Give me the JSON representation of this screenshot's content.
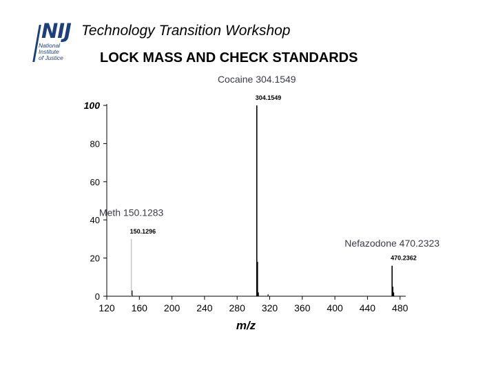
{
  "header": {
    "logo": {
      "text": "NIJ",
      "lines": [
        "National",
        "Institute",
        "of Justice"
      ],
      "color": "#1d3f7a"
    },
    "title": "Technology Transition Workshop",
    "subtitle": "LOCK MASS AND CHECK STANDARDS"
  },
  "chart_data": {
    "type": "bar",
    "title": "",
    "xlabel": "m/z",
    "ylabel": "",
    "xlim": [
      120,
      487
    ],
    "ylim": [
      0,
      100
    ],
    "xticks": [
      120,
      160,
      200,
      240,
      280,
      320,
      360,
      400,
      440,
      480
    ],
    "yticks": [
      0,
      20,
      40,
      60,
      80,
      100
    ],
    "grid": false,
    "legend": "none",
    "series": [
      {
        "peaks": [
          {
            "x": 150.1296,
            "y": 30,
            "label": "150.1296",
            "color": "#c8c8c8"
          },
          {
            "x": 151.13,
            "y": 3
          },
          {
            "x": 304.1549,
            "y": 100,
            "label": "304.1549"
          },
          {
            "x": 305.16,
            "y": 18
          },
          {
            "x": 306.16,
            "y": 2
          },
          {
            "x": 318.0,
            "y": 1
          },
          {
            "x": 470.2362,
            "y": 16,
            "label": "470.2362"
          },
          {
            "x": 471.24,
            "y": 5
          },
          {
            "x": 472.24,
            "y": 2
          }
        ]
      }
    ],
    "annotations": [
      {
        "text": "Cocaine 304.1549",
        "x": 304.1549,
        "y": 112
      },
      {
        "text": "Meth 150.1283",
        "x": 150.1283,
        "y": 42
      },
      {
        "text": "Nefazodone 470.2323",
        "x": 470.2323,
        "y": 26
      }
    ]
  }
}
